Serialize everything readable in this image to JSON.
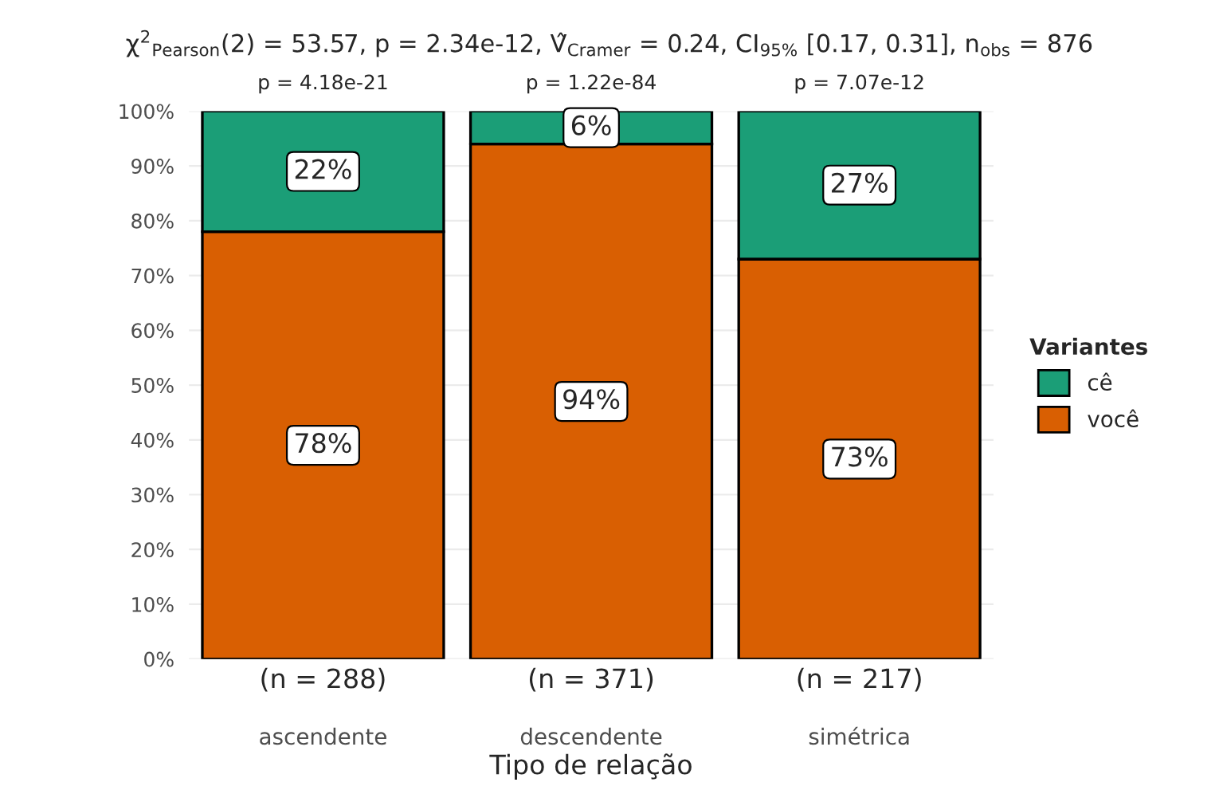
{
  "chart_data": {
    "type": "bar",
    "stacked": true,
    "title": "χ$^{2}$$_{Pearson}$(2) = 53.57, p = 2.34e-12, V̂$_{Cramer}$ = 0.24, CI$_{95%}$ [0.17, 0.31], n$_{obs}$ = 876",
    "xlabel": "Tipo de relação",
    "legend_title": "Variantes",
    "categories": [
      "ascendente",
      "descendente",
      "simétrica"
    ],
    "series": [
      {
        "name": "você",
        "color": "#d95f02",
        "values": [
          78,
          94,
          73
        ],
        "value_labels": [
          "78%",
          "94%",
          "73%"
        ]
      },
      {
        "name": "cê",
        "color": "#1b9e77",
        "values": [
          22,
          6,
          27
        ],
        "value_labels": [
          "22%",
          "6%",
          "27%"
        ]
      }
    ],
    "ylim": [
      0,
      100
    ],
    "yticks": [
      {
        "value": 0,
        "label": "0%"
      },
      {
        "value": 10,
        "label": "10%"
      },
      {
        "value": 20,
        "label": "20%"
      },
      {
        "value": 30,
        "label": "30%"
      },
      {
        "value": 40,
        "label": "40%"
      },
      {
        "value": 50,
        "label": "50%"
      },
      {
        "value": 60,
        "label": "60%"
      },
      {
        "value": 70,
        "label": "70%"
      },
      {
        "value": 80,
        "label": "80%"
      },
      {
        "value": 90,
        "label": "90%"
      },
      {
        "value": 100,
        "label": "100%"
      }
    ],
    "annotations": [
      {
        "text": "p = 4.18e-21",
        "x": "ascendente",
        "y": 100
      },
      {
        "text": "p = 1.22e-84",
        "x": "descendente",
        "y": 100
      },
      {
        "text": "p = 7.07e-12",
        "x": "simétrica",
        "y": 100
      },
      "(n = 288)",
      "(n = 371)",
      "(n = 217)"
    ],
    "grid": "y",
    "legend": "right"
  }
}
